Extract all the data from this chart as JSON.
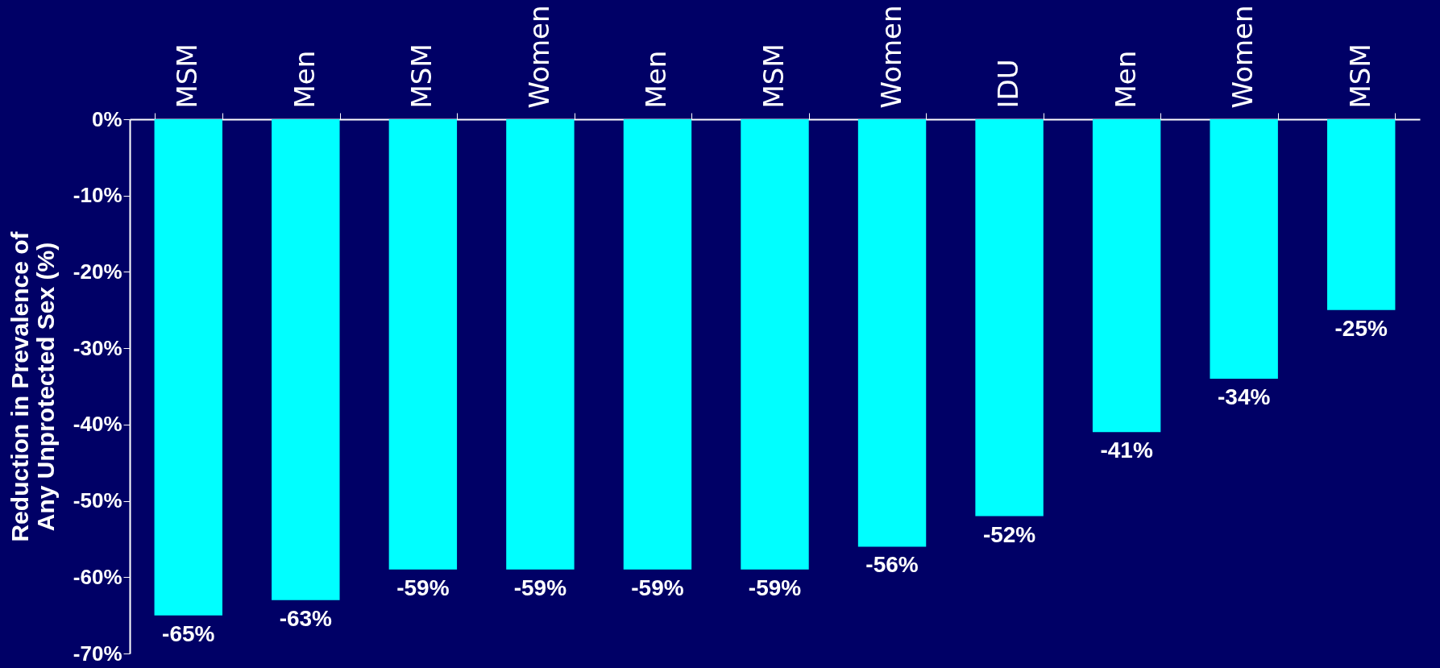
{
  "chart_data": {
    "type": "bar",
    "ylabel": "Reduction in Prevalence of Any Unprotected Sex (%)",
    "categories": [
      "MSM",
      "Men",
      "MSM",
      "Women",
      "Men",
      "MSM",
      "Women",
      "IDU",
      "Men",
      "Women",
      "MSM"
    ],
    "values": [
      -65,
      -63,
      -59,
      -59,
      -59,
      -59,
      -56,
      -52,
      -41,
      -34,
      -25
    ],
    "value_labels": [
      "-65%",
      "-63%",
      "-59%",
      "-59%",
      "-59%",
      "-59%",
      "-56%",
      "-52%",
      "-41%",
      "-34%",
      "-25%"
    ],
    "color": "#00ffff",
    "ylim": [
      -70,
      0
    ],
    "yticks": [
      {
        "value": 0,
        "label": "0%"
      },
      {
        "value": -10,
        "label": "-10%"
      },
      {
        "value": -20,
        "label": "-20%"
      },
      {
        "value": -30,
        "label": "-30%"
      },
      {
        "value": -40,
        "label": "-40%"
      },
      {
        "value": -50,
        "label": "-50%"
      },
      {
        "value": -60,
        "label": "-60%"
      },
      {
        "value": -70,
        "label": "-70%"
      }
    ],
    "grid": false
  }
}
